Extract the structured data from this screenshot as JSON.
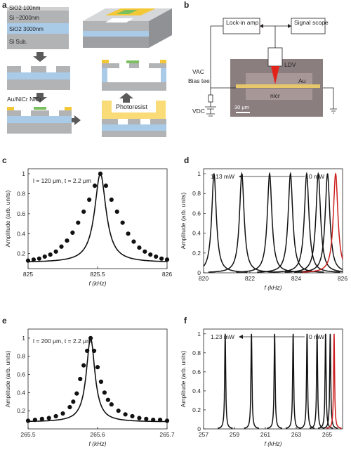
{
  "panel_a": {
    "letter": "a",
    "layers": [
      "SiO2 100nm",
      "Si ~2000nm",
      "SiO2 3000nm",
      "Si Sub."
    ],
    "label_metal": "Au/NiCr NiCr",
    "label_photoresist": "Photoresist"
  },
  "panel_b": {
    "letter": "b",
    "lockin": "Lock-in amp",
    "scope": "Signal scope",
    "ldv": "LDV",
    "vac": "VAC",
    "bias_tee": "Bias tee",
    "vdc": "VDC",
    "au": "Au",
    "nicr": "nicr",
    "scale": "30 μm"
  },
  "chart_data": [
    {
      "panel": "c",
      "type": "scatter",
      "annotation": "l = 120 μm, t = 2.2 μm",
      "xlabel": "f (kHz)",
      "ylabel": "Amplitude (arb. units)",
      "xlim": [
        825,
        826
      ],
      "ylim": [
        0.05,
        1.05
      ],
      "xticks": [
        825,
        825.5,
        826
      ],
      "xticklabels": [
        "825",
        "825.5",
        "826"
      ],
      "yticks": [
        0.2,
        0.4,
        0.6,
        0.8,
        1
      ],
      "yticklabels": [
        "0.2",
        "0.4",
        "0.6",
        "0.8",
        "1"
      ],
      "series": [
        {
          "fit_center": 825.52,
          "fit_halfwidth": 0.05,
          "x": [
            825.0,
            825.04,
            825.08,
            825.12,
            825.16,
            825.2,
            825.24,
            825.28,
            825.32,
            825.36,
            825.4,
            825.44,
            825.48,
            825.52,
            825.56,
            825.6,
            825.64,
            825.68,
            825.72,
            825.76,
            825.8,
            825.84,
            825.88,
            825.92,
            825.96,
            826.0
          ],
          "y": [
            0.13,
            0.14,
            0.15,
            0.17,
            0.19,
            0.22,
            0.27,
            0.33,
            0.41,
            0.51,
            0.62,
            0.74,
            0.88,
            1.0,
            0.88,
            0.74,
            0.62,
            0.51,
            0.4,
            0.32,
            0.26,
            0.22,
            0.19,
            0.17,
            0.15,
            0.14
          ]
        }
      ]
    },
    {
      "panel": "d",
      "type": "line",
      "annotation_left": "1.13 mW",
      "annotation_right": "0 mW",
      "xlabel": "f (kHz)",
      "ylabel": "Amplitude (arb. units)",
      "xlim": [
        820,
        826
      ],
      "ylim": [
        0,
        1.05
      ],
      "xticks": [
        820,
        822,
        824,
        826
      ],
      "xticklabels": [
        "820",
        "822",
        "824",
        "826"
      ],
      "yticks": [
        0,
        0.2,
        0.4,
        0.6,
        0.8,
        1
      ],
      "yticklabels": [
        "0",
        "0.2",
        "0.4",
        "0.6",
        "0.8",
        "1"
      ],
      "colors": {
        "dark": "#111111",
        "reference": "#cc1f1f"
      },
      "peaks": [
        {
          "center": 820.45,
          "halfwidth": 0.12,
          "color": "dark"
        },
        {
          "center": 821.65,
          "halfwidth": 0.12,
          "color": "dark"
        },
        {
          "center": 822.85,
          "halfwidth": 0.12,
          "color": "dark"
        },
        {
          "center": 823.75,
          "halfwidth": 0.12,
          "color": "dark"
        },
        {
          "center": 824.45,
          "halfwidth": 0.12,
          "color": "dark"
        },
        {
          "center": 824.95,
          "halfwidth": 0.12,
          "color": "dark"
        },
        {
          "center": 825.35,
          "halfwidth": 0.12,
          "color": "dark"
        },
        {
          "center": 825.7,
          "halfwidth": 0.12,
          "color": "reference"
        }
      ]
    },
    {
      "panel": "e",
      "type": "scatter",
      "annotation": "l = 200 μm, t = 2.2 μm",
      "xlabel": "f (kHz)",
      "ylabel": "Amplitude (arb. units)",
      "xlim": [
        265.5,
        265.7
      ],
      "ylim": [
        0.0,
        1.1
      ],
      "xticks": [
        265.5,
        265.6,
        265.7
      ],
      "xticklabels": [
        "265.5",
        "265.6",
        "265.7"
      ],
      "yticks": [
        0.2,
        0.4,
        0.6,
        0.8,
        1
      ],
      "yticklabels": [
        "0.2",
        "0.4",
        "0.6",
        "0.8",
        "1"
      ],
      "series": [
        {
          "fit_center": 265.59,
          "fit_halfwidth": 0.0075,
          "x": [
            265.5,
            265.51,
            265.52,
            265.53,
            265.54,
            265.55,
            265.56,
            265.565,
            265.57,
            265.575,
            265.58,
            265.585,
            265.59,
            265.595,
            265.6,
            265.605,
            265.61,
            265.615,
            265.62,
            265.63,
            265.64,
            265.65,
            265.66,
            265.67,
            265.68,
            265.69,
            265.7
          ],
          "y": [
            0.09,
            0.1,
            0.11,
            0.12,
            0.14,
            0.17,
            0.24,
            0.3,
            0.39,
            0.55,
            0.7,
            0.86,
            1.0,
            0.86,
            0.68,
            0.52,
            0.4,
            0.32,
            0.27,
            0.2,
            0.16,
            0.14,
            0.12,
            0.11,
            0.1,
            0.1,
            0.09
          ]
        }
      ]
    },
    {
      "panel": "f",
      "type": "line",
      "annotation_left": "1.23 mW",
      "annotation_right": "0 mW",
      "xlabel": "f (kHz)",
      "ylabel": "Amplitude (arb. units)",
      "xlim": [
        257,
        266
      ],
      "ylim": [
        0,
        1.05
      ],
      "xticks": [
        257,
        259,
        261,
        263,
        265
      ],
      "xticklabels": [
        "257",
        "259",
        "261",
        "263",
        "265"
      ],
      "yticks": [
        0,
        0.2,
        0.4,
        0.6,
        0.8,
        1
      ],
      "yticklabels": [
        "0",
        "0.2",
        "0.4",
        "0.6",
        "0.8",
        "1"
      ],
      "colors": {
        "dark": "#111111",
        "reference": "#cc1f1f"
      },
      "peaks": [
        {
          "center": 258.4,
          "halfwidth": 0.04,
          "color": "dark"
        },
        {
          "center": 260.1,
          "halfwidth": 0.04,
          "color": "dark"
        },
        {
          "center": 261.6,
          "halfwidth": 0.04,
          "color": "dark"
        },
        {
          "center": 262.8,
          "halfwidth": 0.04,
          "color": "dark"
        },
        {
          "center": 263.7,
          "halfwidth": 0.04,
          "color": "dark"
        },
        {
          "center": 264.35,
          "halfwidth": 0.04,
          "color": "dark"
        },
        {
          "center": 264.9,
          "halfwidth": 0.04,
          "color": "dark"
        },
        {
          "center": 265.2,
          "halfwidth": 0.04,
          "color": "dark"
        },
        {
          "center": 265.45,
          "halfwidth": 0.04,
          "color": "reference"
        }
      ]
    }
  ]
}
